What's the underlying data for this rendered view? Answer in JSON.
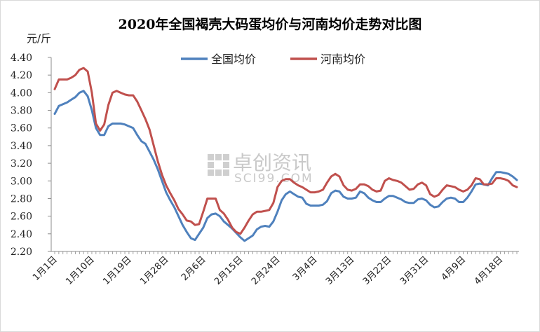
{
  "chart_data": {
    "type": "line",
    "title": "2020年全国褐壳大码蛋均价与河南均价走势对比图",
    "ylabel": "元/斤",
    "xlabel": "",
    "ylim": [
      2.2,
      4.4
    ],
    "yticks": [
      "2.20",
      "2.40",
      "2.60",
      "2.80",
      "3.00",
      "3.20",
      "3.40",
      "3.60",
      "3.80",
      "4.00",
      "4.20",
      "4.40"
    ],
    "xticks": [
      "1月1日",
      "1月10日",
      "1月19日",
      "1月28日",
      "2月6日",
      "2月15日",
      "2月24日",
      "3月4日",
      "3月13日",
      "3月22日",
      "3月31日",
      "4月9日",
      "4月18日"
    ],
    "legend_position": "top-center",
    "watermark": {
      "main": "卓创资讯",
      "sub": "SCI99.COM"
    },
    "series": [
      {
        "name": "全国均价",
        "color": "#4f81bd",
        "points": [
          [
            0,
            3.76
          ],
          [
            1,
            3.85
          ],
          [
            2,
            3.87
          ],
          [
            3,
            3.89
          ],
          [
            4,
            3.92
          ],
          [
            5,
            3.95
          ],
          [
            6,
            4.0
          ],
          [
            7,
            4.02
          ],
          [
            8,
            3.96
          ],
          [
            9,
            3.8
          ],
          [
            10,
            3.6
          ],
          [
            11,
            3.52
          ],
          [
            12,
            3.52
          ],
          [
            13,
            3.62
          ],
          [
            14,
            3.65
          ],
          [
            15,
            3.65
          ],
          [
            16,
            3.65
          ],
          [
            17,
            3.64
          ],
          [
            18,
            3.62
          ],
          [
            19,
            3.6
          ],
          [
            20,
            3.52
          ],
          [
            21,
            3.45
          ],
          [
            22,
            3.42
          ],
          [
            23,
            3.33
          ],
          [
            24,
            3.24
          ],
          [
            25,
            3.13
          ],
          [
            26,
            3.0
          ],
          [
            27,
            2.87
          ],
          [
            28,
            2.78
          ],
          [
            29,
            2.7
          ],
          [
            30,
            2.6
          ],
          [
            31,
            2.5
          ],
          [
            32,
            2.42
          ],
          [
            33,
            2.35
          ],
          [
            34,
            2.33
          ],
          [
            35,
            2.4
          ],
          [
            36,
            2.47
          ],
          [
            37,
            2.58
          ],
          [
            38,
            2.62
          ],
          [
            39,
            2.63
          ],
          [
            40,
            2.6
          ],
          [
            41,
            2.54
          ],
          [
            42,
            2.5
          ],
          [
            43,
            2.46
          ],
          [
            44,
            2.41
          ],
          [
            45,
            2.36
          ],
          [
            46,
            2.32
          ],
          [
            47,
            2.35
          ],
          [
            48,
            2.38
          ],
          [
            49,
            2.45
          ],
          [
            50,
            2.48
          ],
          [
            51,
            2.49
          ],
          [
            52,
            2.48
          ],
          [
            53,
            2.54
          ],
          [
            54,
            2.65
          ],
          [
            55,
            2.78
          ],
          [
            56,
            2.85
          ],
          [
            57,
            2.88
          ],
          [
            58,
            2.85
          ],
          [
            59,
            2.82
          ],
          [
            60,
            2.81
          ],
          [
            61,
            2.74
          ],
          [
            62,
            2.72
          ],
          [
            63,
            2.72
          ],
          [
            64,
            2.72
          ],
          [
            65,
            2.73
          ],
          [
            66,
            2.77
          ],
          [
            67,
            2.86
          ],
          [
            68,
            2.89
          ],
          [
            69,
            2.88
          ],
          [
            70,
            2.82
          ],
          [
            71,
            2.8
          ],
          [
            72,
            2.8
          ],
          [
            73,
            2.81
          ],
          [
            74,
            2.88
          ],
          [
            75,
            2.86
          ],
          [
            76,
            2.81
          ],
          [
            77,
            2.78
          ],
          [
            78,
            2.76
          ],
          [
            79,
            2.76
          ],
          [
            80,
            2.8
          ],
          [
            81,
            2.83
          ],
          [
            82,
            2.83
          ],
          [
            83,
            2.81
          ],
          [
            84,
            2.79
          ],
          [
            85,
            2.76
          ],
          [
            86,
            2.75
          ],
          [
            87,
            2.75
          ],
          [
            88,
            2.79
          ],
          [
            89,
            2.8
          ],
          [
            90,
            2.78
          ],
          [
            91,
            2.73
          ],
          [
            92,
            2.7
          ],
          [
            93,
            2.71
          ],
          [
            94,
            2.76
          ],
          [
            95,
            2.8
          ],
          [
            96,
            2.81
          ],
          [
            97,
            2.8
          ],
          [
            98,
            2.76
          ],
          [
            99,
            2.76
          ],
          [
            100,
            2.81
          ],
          [
            101,
            2.88
          ],
          [
            102,
            2.96
          ],
          [
            103,
            2.97
          ],
          [
            104,
            2.96
          ],
          [
            105,
            2.95
          ],
          [
            106,
            3.03
          ],
          [
            107,
            3.1
          ],
          [
            108,
            3.1
          ],
          [
            109,
            3.09
          ],
          [
            110,
            3.08
          ],
          [
            111,
            3.05
          ],
          [
            112,
            3.01
          ]
        ]
      },
      {
        "name": "河南均价",
        "color": "#c0504d",
        "points": [
          [
            0,
            4.04
          ],
          [
            1,
            4.15
          ],
          [
            2,
            4.15
          ],
          [
            3,
            4.15
          ],
          [
            4,
            4.17
          ],
          [
            5,
            4.2
          ],
          [
            6,
            4.26
          ],
          [
            7,
            4.28
          ],
          [
            8,
            4.24
          ],
          [
            9,
            4.0
          ],
          [
            10,
            3.65
          ],
          [
            11,
            3.57
          ],
          [
            12,
            3.64
          ],
          [
            13,
            3.86
          ],
          [
            14,
            4.0
          ],
          [
            15,
            4.02
          ],
          [
            16,
            4.0
          ],
          [
            17,
            3.98
          ],
          [
            18,
            3.97
          ],
          [
            19,
            3.97
          ],
          [
            20,
            3.9
          ],
          [
            21,
            3.8
          ],
          [
            22,
            3.7
          ],
          [
            23,
            3.58
          ],
          [
            24,
            3.4
          ],
          [
            25,
            3.22
          ],
          [
            26,
            3.07
          ],
          [
            27,
            2.95
          ],
          [
            28,
            2.86
          ],
          [
            29,
            2.78
          ],
          [
            30,
            2.68
          ],
          [
            31,
            2.62
          ],
          [
            32,
            2.55
          ],
          [
            33,
            2.54
          ],
          [
            34,
            2.5
          ],
          [
            35,
            2.51
          ],
          [
            36,
            2.65
          ],
          [
            37,
            2.8
          ],
          [
            38,
            2.8
          ],
          [
            39,
            2.8
          ],
          [
            40,
            2.67
          ],
          [
            41,
            2.63
          ],
          [
            42,
            2.56
          ],
          [
            43,
            2.47
          ],
          [
            44,
            2.42
          ],
          [
            45,
            2.4
          ],
          [
            46,
            2.47
          ],
          [
            47,
            2.55
          ],
          [
            48,
            2.62
          ],
          [
            49,
            2.65
          ],
          [
            50,
            2.65
          ],
          [
            51,
            2.66
          ],
          [
            52,
            2.67
          ],
          [
            53,
            2.75
          ],
          [
            54,
            2.93
          ],
          [
            55,
            3.0
          ],
          [
            56,
            3.02
          ],
          [
            57,
            3.02
          ],
          [
            58,
            2.98
          ],
          [
            59,
            2.95
          ],
          [
            60,
            2.93
          ],
          [
            61,
            2.9
          ],
          [
            62,
            2.87
          ],
          [
            63,
            2.87
          ],
          [
            64,
            2.88
          ],
          [
            65,
            2.9
          ],
          [
            66,
            2.98
          ],
          [
            67,
            3.05
          ],
          [
            68,
            3.08
          ],
          [
            69,
            3.05
          ],
          [
            70,
            2.95
          ],
          [
            71,
            2.9
          ],
          [
            72,
            2.89
          ],
          [
            73,
            2.91
          ],
          [
            74,
            2.96
          ],
          [
            75,
            2.96
          ],
          [
            76,
            2.94
          ],
          [
            77,
            2.9
          ],
          [
            78,
            2.88
          ],
          [
            79,
            2.89
          ],
          [
            80,
            3.0
          ],
          [
            81,
            3.03
          ],
          [
            82,
            3.01
          ],
          [
            83,
            3.0
          ],
          [
            84,
            2.98
          ],
          [
            85,
            2.94
          ],
          [
            86,
            2.9
          ],
          [
            87,
            2.91
          ],
          [
            88,
            2.96
          ],
          [
            89,
            2.98
          ],
          [
            90,
            2.95
          ],
          [
            91,
            2.85
          ],
          [
            92,
            2.82
          ],
          [
            93,
            2.84
          ],
          [
            94,
            2.9
          ],
          [
            95,
            2.95
          ],
          [
            96,
            2.94
          ],
          [
            97,
            2.93
          ],
          [
            98,
            2.9
          ],
          [
            99,
            2.88
          ],
          [
            100,
            2.9
          ],
          [
            101,
            2.95
          ],
          [
            102,
            3.03
          ],
          [
            103,
            3.02
          ],
          [
            104,
            2.96
          ],
          [
            105,
            2.96
          ],
          [
            106,
            2.97
          ],
          [
            107,
            3.03
          ],
          [
            108,
            3.03
          ],
          [
            109,
            3.02
          ],
          [
            110,
            3.0
          ],
          [
            111,
            2.95
          ],
          [
            112,
            2.93
          ]
        ]
      }
    ]
  }
}
